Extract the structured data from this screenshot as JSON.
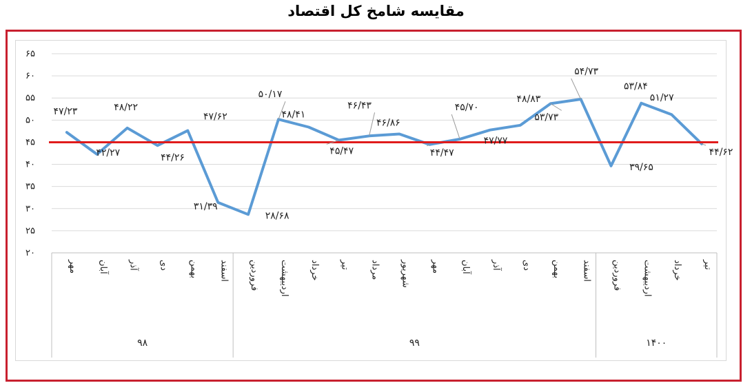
{
  "title": "مقایسه شامخ کل اقتصاد",
  "colors": {
    "frame": "#c8202f",
    "series_line": "#5b9bd5",
    "reference_line": "#e01b1b",
    "grid": "#d9d9d9",
    "text": "#222222"
  },
  "chart_data": {
    "type": "line",
    "ylim": [
      20,
      65
    ],
    "yticks": [
      "۲۰",
      "۲۵",
      "۳۰",
      "۳۵",
      "۴۰",
      "۴۵",
      "۵۰",
      "۵۵",
      "۶۰",
      "۶۵"
    ],
    "ytick_values": [
      20,
      25,
      30,
      35,
      40,
      45,
      50,
      55,
      60,
      65
    ],
    "grid": true,
    "categories": [
      "مهر",
      "آبان",
      "آذر",
      "دی",
      "بهمن",
      "اسفند",
      "فروردین",
      "اردیبهشت",
      "خرداد",
      "تیر",
      "مرداد",
      "شهریور",
      "مهر",
      "آبان",
      "آذر",
      "دی",
      "بهمن",
      "اسفند",
      "فروردین",
      "اردیبهشت",
      "خرداد",
      "تیر"
    ],
    "groups": [
      {
        "label": "۹۸",
        "count": 6
      },
      {
        "label": "۹۹",
        "count": 12
      },
      {
        "label": "۱۴۰۰",
        "count": 4
      }
    ],
    "series": [
      {
        "values": [
          47.23,
          42.27,
          48.22,
          44.26,
          47.62,
          31.39,
          28.68,
          50.17,
          48.41,
          45.47,
          46.43,
          46.86,
          44.47,
          45.7,
          47.77,
          48.83,
          53.73,
          54.73,
          39.65,
          53.84,
          51.27,
          44.62
        ],
        "labels": [
          "۴۷/۲۳",
          "۴۲/۲۷",
          "۴۸/۲۲",
          "۴۴/۲۶",
          "۴۷/۶۲",
          "۳۱/۳۹",
          "۲۸/۶۸",
          "۵۰/۱۷",
          "۴۸/۴۱",
          "۴۵/۴۷",
          "۴۶/۴۳",
          "۴۶/۸۶",
          "۴۴/۴۷",
          "۴۵/۷۰",
          "۴۷/۷۷",
          "۴۸/۸۳",
          "۵۳/۷۳",
          "۵۴/۷۳",
          "۳۹/۶۵",
          "۵۳/۸۴",
          "۵۱/۲۷",
          "۴۴/۶۲"
        ]
      }
    ],
    "reference_line": {
      "value": 45
    }
  }
}
